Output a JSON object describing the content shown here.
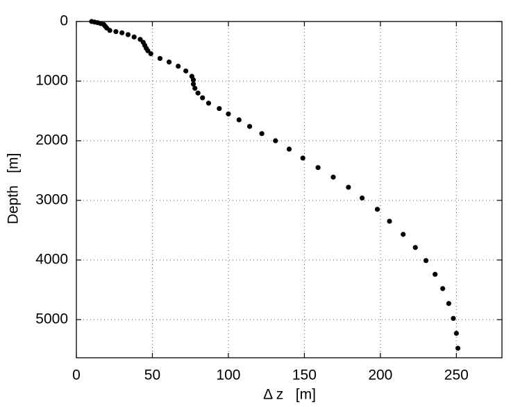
{
  "chart_data": {
    "type": "scatter",
    "xlabel": "Δ z   [m]",
    "ylabel": "Depth   [m]",
    "x": [
      10,
      12,
      14,
      16,
      18,
      19,
      20,
      22,
      26,
      30,
      34,
      38,
      42,
      44,
      45,
      46,
      47,
      49,
      55,
      61,
      67,
      72,
      76,
      77,
      77,
      78,
      80,
      83,
      87,
      94,
      100,
      107,
      114,
      122,
      131,
      140,
      149,
      159,
      169,
      179,
      188,
      198,
      206,
      215,
      223,
      230,
      236,
      241,
      245,
      248,
      250,
      251
    ],
    "values": [
      0,
      10,
      20,
      35,
      50,
      80,
      110,
      150,
      170,
      190,
      220,
      260,
      300,
      350,
      400,
      450,
      490,
      540,
      620,
      680,
      750,
      830,
      920,
      980,
      1050,
      1120,
      1200,
      1280,
      1370,
      1460,
      1550,
      1650,
      1760,
      1880,
      2000,
      2140,
      2290,
      2450,
      2610,
      2780,
      2960,
      3150,
      3350,
      3570,
      3790,
      4010,
      4240,
      4480,
      4730,
      4980,
      5230,
      5480
    ],
    "color": "#000000",
    "xlim": [
      0,
      280
    ],
    "xticks": [
      0,
      50,
      100,
      150,
      200,
      250
    ],
    "ylim": [
      0,
      5640
    ],
    "yticks": [
      0,
      1000,
      2000,
      3000,
      4000,
      5000
    ],
    "y_inverted": true,
    "grid": true
  }
}
